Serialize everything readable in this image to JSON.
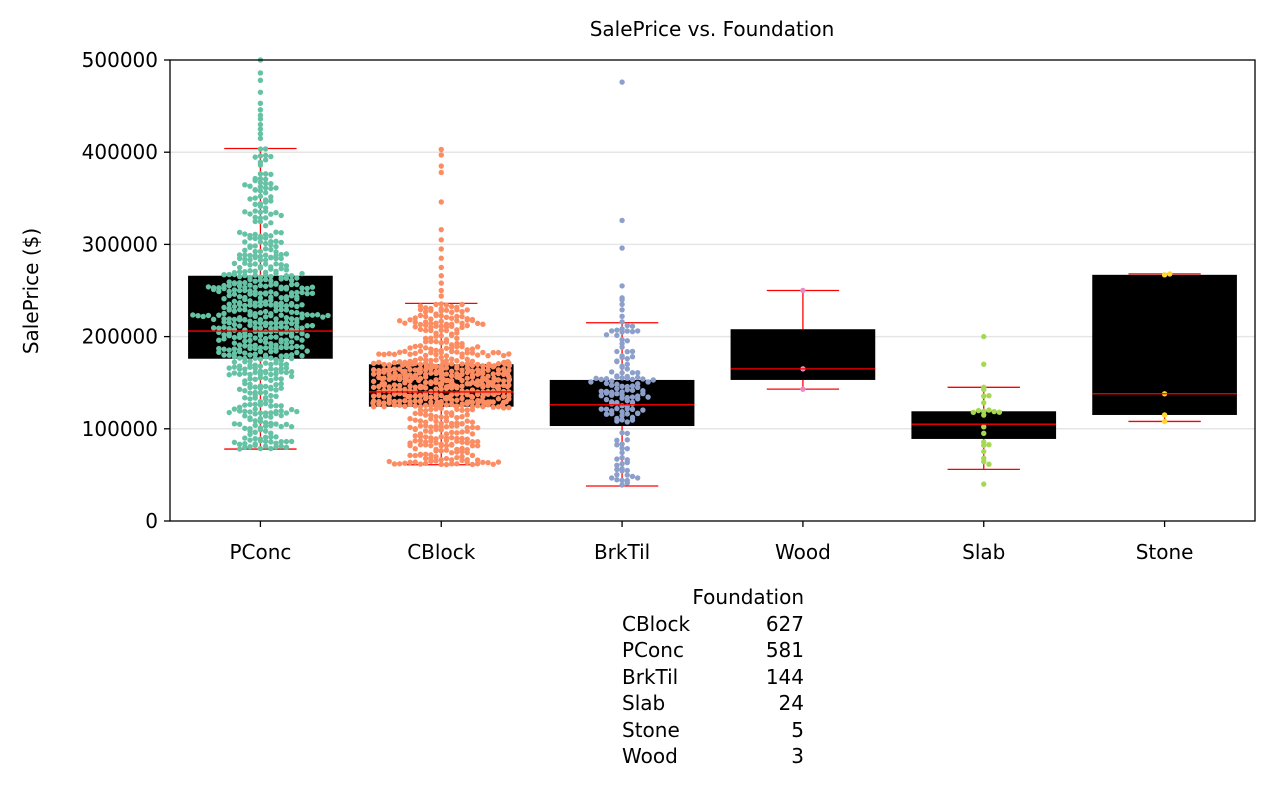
{
  "chart_data": {
    "type": "box",
    "title": "SalePrice vs. Foundation",
    "xlabel": "",
    "ylabel": "SalePrice ($)",
    "ylim": [
      0,
      500000
    ],
    "yticks": [
      "0",
      "100000",
      "200000",
      "300000",
      "400000",
      "500000"
    ],
    "grid": "horizontal",
    "categories": [
      "PConc",
      "CBlock",
      "BrkTil",
      "Wood",
      "Slab",
      "Stone"
    ],
    "point_colors": [
      "#66c2a5",
      "#fc8d62",
      "#8da0cb",
      "#e78ac3",
      "#a6d854",
      "#ffd92f"
    ],
    "boxes": [
      {
        "q1": 176000,
        "median": 206000,
        "q3": 266000,
        "whisker_low": 78000,
        "whisker_high": 404000
      },
      {
        "q1": 124000,
        "median": 140000,
        "q3": 170000,
        "whisker_low": 61000,
        "whisker_high": 236000
      },
      {
        "q1": 103000,
        "median": 126000,
        "q3": 153000,
        "whisker_low": 38000,
        "whisker_high": 215000
      },
      {
        "q1": 153000,
        "median": 165000,
        "q3": 208000,
        "whisker_low": 143000,
        "whisker_high": 250000
      },
      {
        "q1": 89000,
        "median": 105000,
        "q3": 119000,
        "whisker_low": 56000,
        "whisker_high": 145000
      },
      {
        "q1": 115000,
        "median": 138000,
        "q3": 267000,
        "whisker_low": 108000,
        "whisker_high": 268000
      }
    ],
    "outliers": [
      [
        415000,
        420000,
        425000,
        430000,
        436000,
        440000,
        446000,
        453000,
        465000,
        478000,
        486000,
        500000
      ],
      [
        244000,
        250000,
        258000,
        266000,
        275000,
        285000,
        295000,
        305000,
        316000,
        346000,
        378000,
        385000,
        397000,
        403000
      ],
      [
        216000,
        222000,
        229000,
        235000,
        240000,
        242000,
        255000,
        296000,
        326000,
        476000
      ],
      [],
      [
        40000,
        145000,
        170000,
        200000
      ],
      []
    ],
    "points": [
      [],
      [],
      [],
      [
        143000,
        165000,
        250000
      ],
      [],
      [
        108000,
        115000,
        138000,
        267000,
        268000
      ]
    ],
    "point_counts": [
      581,
      627,
      144,
      3,
      24,
      5
    ]
  },
  "value_counts": {
    "title": "Foundation",
    "rows": [
      {
        "label": "CBlock",
        "count": "627"
      },
      {
        "label": "PConc",
        "count": "581"
      },
      {
        "label": "BrkTil",
        "count": "144"
      },
      {
        "label": "Slab",
        "count": "24"
      },
      {
        "label": "Stone",
        "count": "5"
      },
      {
        "label": "Wood",
        "count": "3"
      }
    ]
  }
}
